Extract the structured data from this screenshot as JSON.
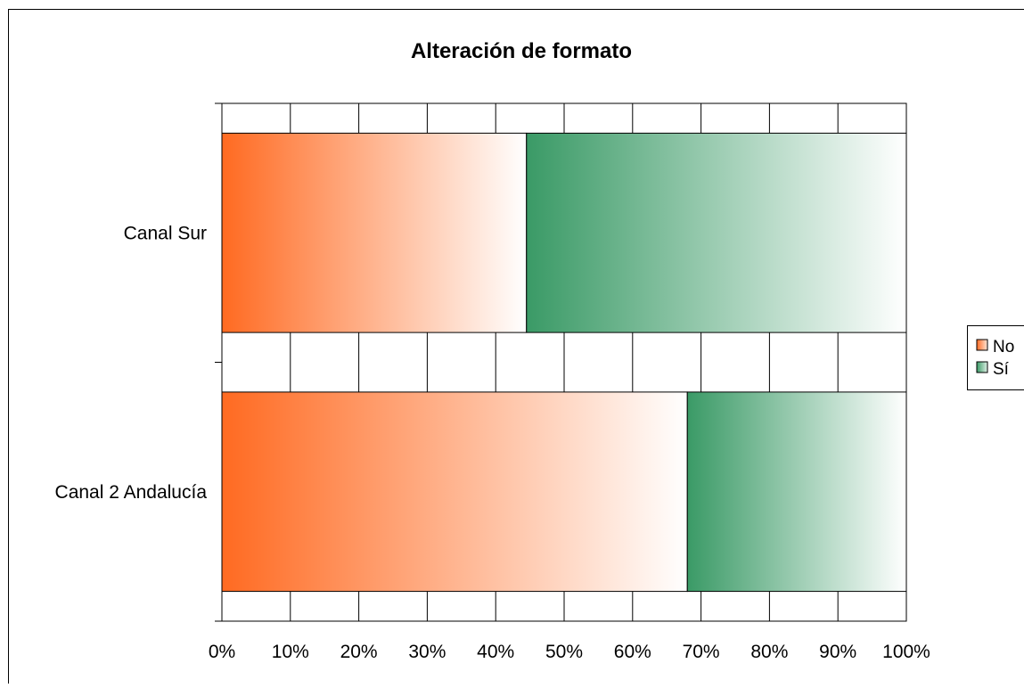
{
  "chart_data": {
    "type": "bar",
    "orientation": "horizontal",
    "stacked": "percent",
    "title": "Alteración de formato",
    "categories": [
      "Canal Sur",
      "Canal 2 Andalucía"
    ],
    "series": [
      {
        "name": "No",
        "values": [
          44.5,
          68
        ],
        "color": "#ff6a21"
      },
      {
        "name": "Sí",
        "values": [
          55.5,
          32
        ],
        "color": "#3a9a66"
      }
    ],
    "x_ticks": [
      "0%",
      "10%",
      "20%",
      "30%",
      "40%",
      "50%",
      "60%",
      "70%",
      "80%",
      "90%",
      "100%"
    ],
    "xlim": [
      0,
      100
    ],
    "xlabel": "",
    "ylabel": "",
    "grid": "vertical",
    "legend_position": "right"
  }
}
